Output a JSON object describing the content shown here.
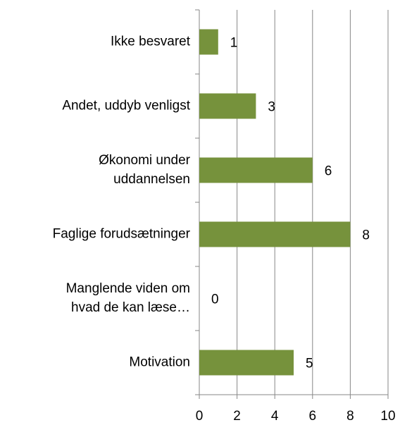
{
  "chart_data": {
    "type": "hbar",
    "categories": [
      "Ikke besvaret",
      "Andet, uddyb venligst",
      "Økonomi under\nuddannelsen",
      "Faglige forudsætninger",
      "Manglende viden om\nhvad de kan læse…",
      "Motivation"
    ],
    "values": [
      1,
      3,
      6,
      8,
      0,
      5
    ],
    "color": "#76923c",
    "xlim": [
      0,
      10
    ],
    "xticks": [
      0,
      2,
      4,
      6,
      8,
      10
    ],
    "grid": true
  }
}
